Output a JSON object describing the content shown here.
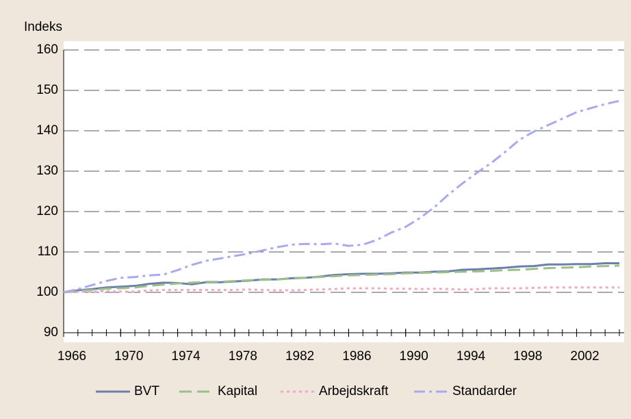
{
  "chart_data": {
    "type": "line",
    "y_label": "Indeks",
    "x": [
      1966,
      1967,
      1968,
      1969,
      1970,
      1971,
      1972,
      1973,
      1974,
      1975,
      1976,
      1977,
      1978,
      1979,
      1980,
      1981,
      1982,
      1983,
      1984,
      1985,
      1986,
      1987,
      1988,
      1989,
      1990,
      1991,
      1992,
      1993,
      1994,
      1995,
      1996,
      1997,
      1998,
      1999,
      2000,
      2001,
      2002,
      2003,
      2004,
      2005
    ],
    "xlim": [
      1966,
      2005
    ],
    "xticks": [
      1966,
      1970,
      1974,
      1978,
      1982,
      1986,
      1990,
      1994,
      1998,
      2002
    ],
    "ylim": [
      90,
      160
    ],
    "yticks": [
      90,
      100,
      110,
      120,
      130,
      140,
      150,
      160
    ],
    "grid": true,
    "legend": "bottom",
    "series": [
      {
        "name": "BVT",
        "color": "#6b7fa8",
        "dash": "none",
        "values": [
          100,
          100.5,
          100.8,
          101.2,
          101.4,
          101.6,
          102.1,
          102.4,
          102.3,
          102.0,
          102.5,
          102.5,
          102.7,
          102.9,
          103.2,
          103.2,
          103.5,
          103.6,
          103.9,
          104.3,
          104.5,
          104.6,
          104.6,
          104.7,
          104.9,
          104.9,
          105.1,
          105.2,
          105.6,
          105.7,
          105.9,
          106.1,
          106.4,
          106.5,
          106.9,
          106.9,
          107.0,
          107.0,
          107.2,
          107.2
        ]
      },
      {
        "name": "Kapital",
        "color": "#9dbf8a",
        "dash": "18 8",
        "values": [
          100,
          100.3,
          100.6,
          100.9,
          101.0,
          101.2,
          101.6,
          101.9,
          102.2,
          102.4,
          102.6,
          102.6,
          102.8,
          103.0,
          103.1,
          103.2,
          103.4,
          103.6,
          103.8,
          104.0,
          104.2,
          104.3,
          104.4,
          104.5,
          104.7,
          104.8,
          104.9,
          105.0,
          105.1,
          105.2,
          105.3,
          105.5,
          105.6,
          105.8,
          106.0,
          106.1,
          106.2,
          106.4,
          106.5,
          106.6
        ]
      },
      {
        "name": "Arbejdskraft",
        "color": "#f2a6c8",
        "dash": "4 5",
        "values": [
          100,
          100.1,
          100.2,
          100.3,
          100.2,
          100.2,
          100.5,
          100.6,
          100.6,
          100.6,
          100.6,
          100.6,
          100.6,
          100.7,
          100.6,
          100.5,
          100.5,
          100.6,
          100.7,
          100.8,
          101.0,
          101.0,
          101.0,
          100.9,
          100.9,
          100.8,
          100.9,
          100.8,
          100.7,
          100.8,
          101.0,
          101.0,
          101.0,
          101.1,
          101.2,
          101.2,
          101.2,
          101.2,
          101.2,
          101.2
        ]
      },
      {
        "name": "Standarder",
        "color": "#a9a9f0",
        "dash": "16 6 4 6",
        "values": [
          100,
          100.8,
          101.8,
          102.8,
          103.6,
          103.8,
          104.2,
          104.4,
          105.5,
          106.8,
          107.8,
          108.4,
          109.0,
          109.6,
          110.4,
          111.2,
          111.8,
          112.0,
          111.9,
          112.1,
          111.5,
          111.8,
          113.0,
          114.8,
          116.2,
          118.4,
          121.0,
          124.2,
          127.0,
          129.6,
          132.0,
          134.8,
          137.8,
          139.8,
          141.4,
          143.0,
          144.6,
          145.6,
          146.6,
          147.4
        ]
      }
    ]
  }
}
